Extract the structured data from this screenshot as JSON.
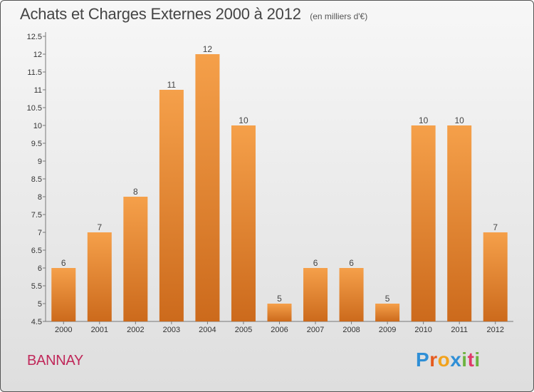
{
  "chart_data": {
    "type": "bar",
    "title": "Achats et Charges Externes 2000 à 2012",
    "subtitle": "(en milliers d'€)",
    "categories": [
      "2000",
      "2001",
      "2002",
      "2003",
      "2004",
      "2005",
      "2006",
      "2007",
      "2008",
      "2009",
      "2010",
      "2011",
      "2012"
    ],
    "values": [
      6,
      7,
      8,
      11,
      12,
      10,
      5,
      6,
      6,
      5,
      10,
      10,
      7
    ],
    "ylim": [
      4.5,
      12.5
    ],
    "yticks": [
      4.5,
      5,
      5.5,
      6,
      6.5,
      7,
      7.5,
      8,
      8.5,
      9,
      9.5,
      10,
      10.5,
      11,
      11.5,
      12,
      12.5
    ],
    "ytick_labels": [
      "4.5",
      "5",
      "5.5",
      "6",
      "6.5",
      "7",
      "7.5",
      "8",
      "8.5",
      "9",
      "9.5",
      "10",
      "10.5",
      "11",
      "11.5",
      "12",
      "12.5"
    ],
    "bar_color_top": "#f5a04a",
    "bar_color_bottom": "#cc6a1c",
    "grid": false
  },
  "commune": "BANNAY",
  "logo": {
    "letters": [
      "P",
      "r",
      "o",
      "x",
      "i",
      "t",
      "i"
    ],
    "colors": [
      "#2f8fd6",
      "#e65a1e",
      "#f2a21c",
      "#2f8fd6",
      "#6cb33f",
      "#e03a6a",
      "#6cb33f"
    ]
  }
}
